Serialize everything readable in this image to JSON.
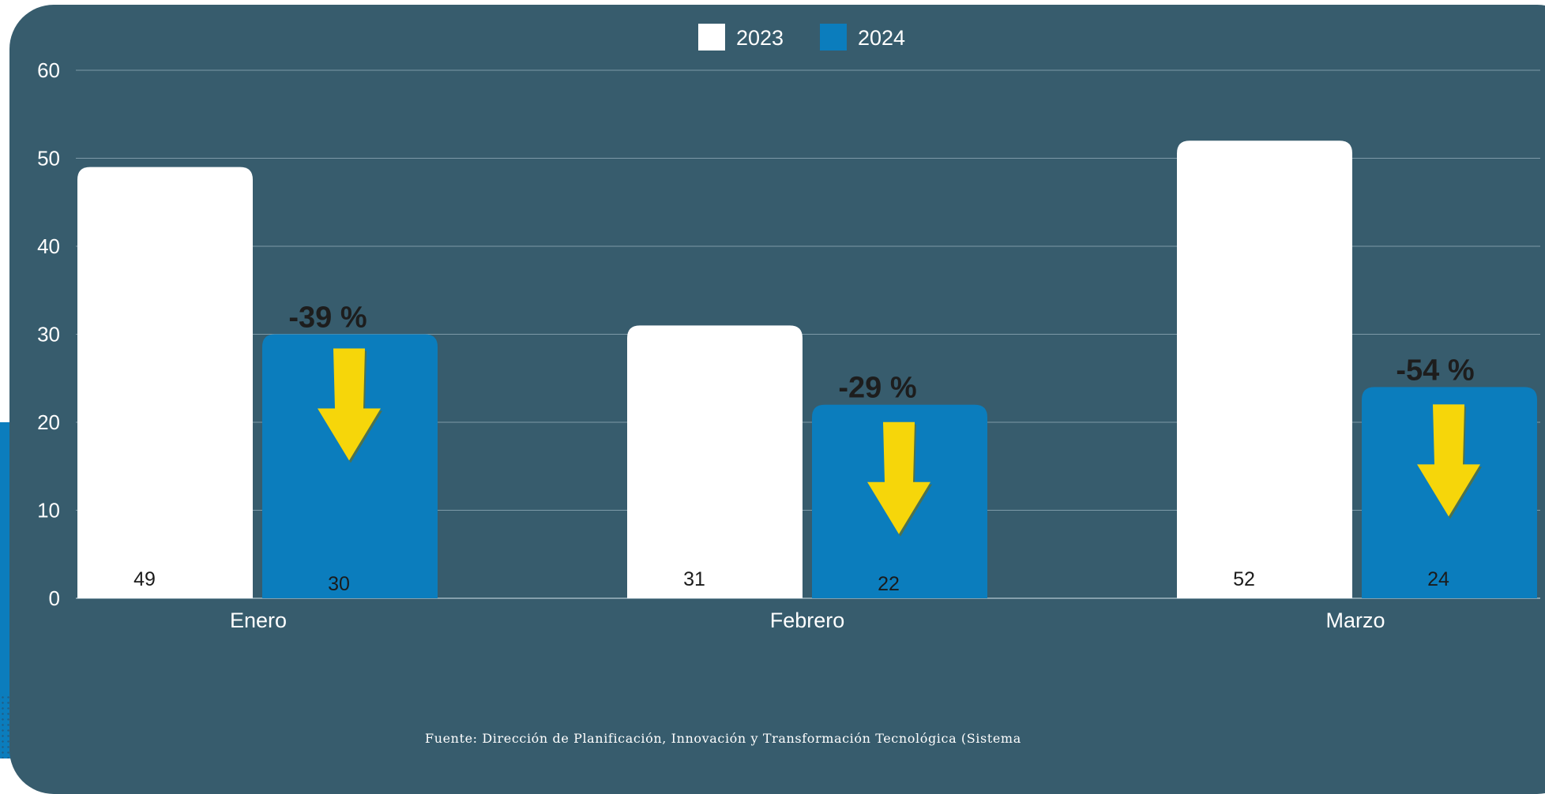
{
  "chart_data": {
    "type": "bar",
    "categories": [
      "Enero",
      "Febrero",
      "Marzo"
    ],
    "series": [
      {
        "name": "2023",
        "values": [
          49,
          31,
          52
        ],
        "color": "#ffffff"
      },
      {
        "name": "2024",
        "values": [
          30,
          22,
          24
        ],
        "color": "#0b7dbd"
      }
    ],
    "ylim": [
      0,
      60
    ],
    "yticks": [
      "0",
      "10",
      "20",
      "30",
      "40",
      "50",
      "60"
    ],
    "grid": true,
    "legend_position": "top-center",
    "value_labels": {
      "2023": [
        "49",
        "31",
        "52"
      ],
      "2024": [
        "30",
        "22",
        "24"
      ]
    },
    "change_labels": [
      "-39 %",
      "-29 %",
      "-54 %"
    ],
    "arrow_color": "#f6d60a",
    "background_color": "#375c6d"
  },
  "source_text": "Fuente: Dirección de Planificación, Innovación y Transformación Tecnológica (Sistema"
}
